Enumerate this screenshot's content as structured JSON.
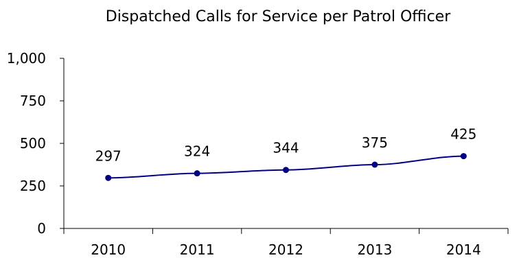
{
  "chart_data": {
    "type": "line",
    "title": "Dispatched Calls for Service per Patrol Officer",
    "xlabel": "",
    "ylabel": "",
    "categories": [
      "2010",
      "2011",
      "2012",
      "2013",
      "2014"
    ],
    "series": [
      {
        "values": [
          297,
          324,
          344,
          375,
          425
        ],
        "color": "#000080"
      }
    ],
    "data_labels": [
      "297",
      "324",
      "344",
      "375",
      "425"
    ],
    "ylim": [
      0,
      1000
    ],
    "yticks": [
      0,
      250,
      500,
      750,
      1000
    ],
    "ytick_labels": [
      "0",
      "250",
      "500",
      "750",
      "1,000"
    ],
    "grid": false,
    "legend": "none"
  }
}
